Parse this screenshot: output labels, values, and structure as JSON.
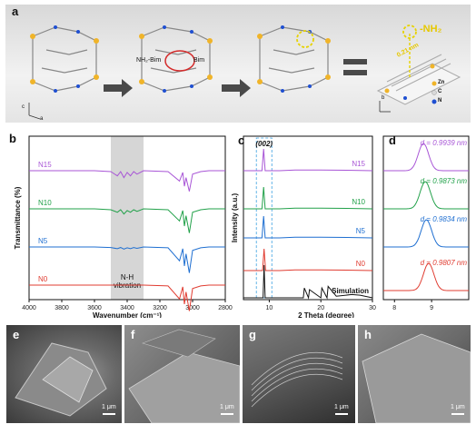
{
  "panels": {
    "a": "a",
    "b": "b",
    "c": "c",
    "d": "d",
    "e": "e",
    "f": "f",
    "g": "g",
    "h": "h"
  },
  "panel_a": {
    "nh2_label": "-NH₂",
    "dist_label": "0.21 nm",
    "reagent": "NH₂-Bim",
    "reagent2": "Bim",
    "legend": [
      "Zn",
      "C",
      "N"
    ],
    "legend_colors": [
      "#f0b429",
      "#d9d9d9",
      "#1f4fd1"
    ],
    "axes": [
      "c",
      "a",
      "b"
    ]
  },
  "chart_data": [
    {
      "type": "line",
      "panel": "b",
      "xlabel": "Wavenumber (cm⁻¹)",
      "ylabel": "Transmittance (%)",
      "xlim": [
        4000,
        2800
      ],
      "x_ticks": [
        4000,
        3800,
        3600,
        3400,
        3200,
        3000,
        2800
      ],
      "shaded_region": [
        3500,
        3300
      ],
      "shaded_label": "N-H\nvibration",
      "series": [
        {
          "name": "N15",
          "color": "#a855d6",
          "x": [
            4000,
            3600,
            3500,
            3460,
            3440,
            3420,
            3400,
            3380,
            3360,
            3340,
            3300,
            3150,
            3080,
            3060,
            3050,
            3040,
            3020,
            3000,
            2950,
            2900,
            2800
          ],
          "y": [
            0,
            0,
            -0.5,
            -3,
            -0.5,
            -4,
            -1,
            -3,
            -0.5,
            -2,
            0,
            -0.5,
            -6,
            -1,
            -9,
            -4,
            -12,
            -2,
            -0.5,
            0,
            0
          ]
        },
        {
          "name": "N10",
          "color": "#22a14a",
          "x": [
            4000,
            3600,
            3500,
            3460,
            3440,
            3420,
            3400,
            3380,
            3360,
            3340,
            3300,
            3150,
            3080,
            3060,
            3050,
            3040,
            3020,
            3000,
            2950,
            2900,
            2800
          ],
          "y": [
            0,
            0,
            -0.5,
            -2,
            -0.5,
            -3,
            -1,
            -2,
            -0.5,
            -1.5,
            0,
            -0.5,
            -7,
            -1,
            -10,
            -4,
            -14,
            -2,
            -0.5,
            0,
            0
          ]
        },
        {
          "name": "N5",
          "color": "#1f6fd1",
          "x": [
            4000,
            3600,
            3500,
            3460,
            3440,
            3420,
            3400,
            3380,
            3360,
            3340,
            3300,
            3150,
            3080,
            3060,
            3050,
            3040,
            3020,
            3000,
            2950,
            2900,
            2800
          ],
          "y": [
            0,
            0,
            -0.3,
            -1,
            -0.3,
            -1.2,
            -0.5,
            -1,
            -0.3,
            -0.8,
            0,
            -0.5,
            -8,
            -1,
            -11,
            -4,
            -15,
            -2,
            -0.5,
            0,
            0
          ]
        },
        {
          "name": "N0",
          "color": "#e03c31",
          "x": [
            4000,
            3600,
            3500,
            3460,
            3440,
            3420,
            3400,
            3380,
            3360,
            3340,
            3300,
            3150,
            3080,
            3060,
            3050,
            3040,
            3020,
            3000,
            2950,
            2900,
            2800
          ],
          "y": [
            0,
            0,
            0,
            0,
            0,
            0,
            0,
            0,
            0,
            0,
            0,
            -0.5,
            -8,
            -1,
            -11,
            -4,
            -15,
            -2,
            -0.5,
            0,
            0
          ]
        }
      ]
    },
    {
      "type": "line",
      "panel": "c",
      "xlabel": "2 Theta (degree)",
      "ylabel": "Intensity (a.u.)",
      "xlim": [
        5,
        30
      ],
      "x_ticks": [
        10,
        20,
        30
      ],
      "highlight_label": "(002)",
      "series": [
        {
          "name": "N15",
          "color": "#a855d6",
          "x": [
            5,
            8.6,
            8.9,
            9.2,
            12,
            15,
            20,
            25,
            30
          ],
          "y": [
            0,
            0,
            10,
            0,
            0,
            0.3,
            0.3,
            0.2,
            0
          ]
        },
        {
          "name": "N10",
          "color": "#22a14a",
          "x": [
            5,
            8.6,
            8.9,
            9.2,
            12,
            15,
            20,
            25,
            30
          ],
          "y": [
            0,
            0,
            10,
            0,
            0,
            0.3,
            0.3,
            0.2,
            0
          ]
        },
        {
          "name": "N5",
          "color": "#1f6fd1",
          "x": [
            5,
            8.6,
            8.9,
            9.2,
            12,
            15,
            20,
            25,
            30
          ],
          "y": [
            0,
            0,
            10,
            0,
            0,
            0.3,
            0.3,
            0.2,
            0
          ]
        },
        {
          "name": "N0",
          "color": "#e03c31",
          "x": [
            5,
            8.7,
            9.0,
            9.3,
            12,
            15,
            20,
            25,
            30
          ],
          "y": [
            0,
            0,
            10,
            0,
            0,
            0.3,
            0.3,
            0.2,
            0
          ]
        },
        {
          "name": "Simulation",
          "color": "#111111",
          "x": [
            5,
            8.8,
            9.0,
            9.2,
            12,
            16.6,
            16.8,
            17.6,
            17.8,
            20.0,
            20.2,
            21.2,
            21.4,
            23,
            26,
            27.6,
            30
          ],
          "y": [
            0,
            0,
            10,
            0,
            0,
            0,
            3,
            0,
            2.5,
            0,
            3,
            0,
            3.5,
            0.5,
            1,
            0.8,
            0
          ]
        }
      ]
    },
    {
      "type": "line",
      "panel": "d",
      "x_ticks": [
        8,
        9
      ],
      "xlim": [
        7.7,
        10.0
      ],
      "series": [
        {
          "name": "N15",
          "color": "#a855d6",
          "peak": 8.78,
          "d_label": "d = 0.9939 nm"
        },
        {
          "name": "N10",
          "color": "#22a14a",
          "peak": 8.83,
          "d_label": "d = 0.9873 nm"
        },
        {
          "name": "N5",
          "color": "#1f6fd1",
          "peak": 8.86,
          "d_label": "d = 0.9834 nm"
        },
        {
          "name": "N0",
          "color": "#e03c31",
          "peak": 8.92,
          "d_label": "d = 0.9807 nm"
        }
      ]
    }
  ],
  "sem": {
    "scale_bar": "1 μm"
  }
}
